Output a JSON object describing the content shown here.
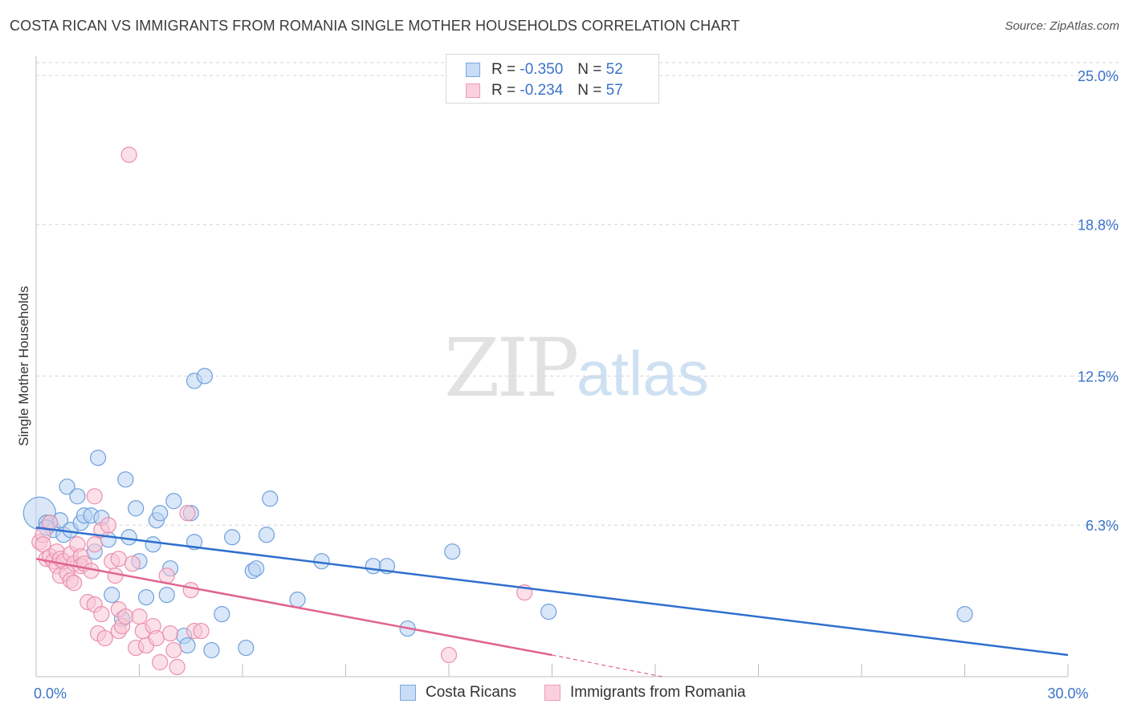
{
  "title": "COSTA RICAN VS IMMIGRANTS FROM ROMANIA SINGLE MOTHER HOUSEHOLDS CORRELATION CHART",
  "source": "Source: ZipAtlas.com",
  "watermark": {
    "zip": "ZIP",
    "atlas": "atlas"
  },
  "colors": {
    "blue_fill": "#b9d3f2",
    "blue_stroke": "#6fa0dc",
    "blue_line": "#2f6fce",
    "pink_fill": "#f8c6d6",
    "pink_stroke": "#eb8fae",
    "pink_line": "#e0648f",
    "tick_text": "#3a73c8",
    "grid": "#d6d6d6"
  },
  "legend_top": {
    "rows": [
      {
        "series": "blue",
        "r_label": "R =",
        "r_value": "-0.350",
        "n_label": "N =",
        "n_value": "52"
      },
      {
        "series": "pink",
        "r_label": "R =",
        "r_value": "-0.234",
        "n_label": "N =",
        "n_value": "57"
      }
    ]
  },
  "chart_data": {
    "type": "scatter",
    "title": "COSTA RICAN VS IMMIGRANTS FROM ROMANIA SINGLE MOTHER HOUSEHOLDS CORRELATION CHART",
    "xlabel": "",
    "ylabel": "Single Mother Households",
    "xlim": [
      0,
      30
    ],
    "ylim": [
      0,
      25.8
    ],
    "x_tick_labels": [
      {
        "value": 0,
        "label": "0.0%"
      },
      {
        "value": 30,
        "label": "30.0%"
      }
    ],
    "x_minor_ticks": [
      3,
      6,
      9,
      12,
      15,
      18,
      21,
      24,
      27
    ],
    "y_ticks": [
      {
        "value": 6.3,
        "label": "6.3%"
      },
      {
        "value": 12.5,
        "label": "12.5%"
      },
      {
        "value": 18.8,
        "label": "18.8%"
      },
      {
        "value": 25.0,
        "label": "25.0%"
      }
    ],
    "series": [
      {
        "name": "Costa Ricans",
        "color": "blue",
        "r": -0.35,
        "n": 52,
        "trend": {
          "x": [
            0,
            30
          ],
          "y": [
            6.2,
            0.9
          ]
        },
        "points": [
          [
            0.1,
            6.8
          ],
          [
            0.3,
            6.4
          ],
          [
            0.4,
            6.4
          ],
          [
            0.5,
            6.1
          ],
          [
            0.7,
            6.5
          ],
          [
            0.8,
            5.9
          ],
          [
            0.9,
            7.9
          ],
          [
            1.0,
            6.1
          ],
          [
            1.2,
            7.5
          ],
          [
            1.3,
            6.4
          ],
          [
            1.4,
            6.7
          ],
          [
            1.6,
            6.7
          ],
          [
            1.7,
            5.2
          ],
          [
            1.8,
            9.1
          ],
          [
            1.9,
            6.6
          ],
          [
            2.1,
            5.7
          ],
          [
            2.2,
            3.4
          ],
          [
            2.5,
            2.4
          ],
          [
            2.6,
            8.2
          ],
          [
            2.7,
            5.8
          ],
          [
            2.9,
            7.0
          ],
          [
            3.0,
            4.8
          ],
          [
            3.2,
            3.3
          ],
          [
            3.4,
            5.5
          ],
          [
            3.5,
            6.5
          ],
          [
            3.6,
            6.8
          ],
          [
            3.8,
            3.4
          ],
          [
            3.9,
            4.5
          ],
          [
            4.0,
            7.3
          ],
          [
            4.3,
            1.7
          ],
          [
            4.4,
            1.3
          ],
          [
            4.5,
            6.8
          ],
          [
            4.6,
            12.3
          ],
          [
            4.6,
            5.6
          ],
          [
            4.9,
            12.5
          ],
          [
            5.1,
            1.1
          ],
          [
            5.4,
            2.6
          ],
          [
            5.7,
            5.8
          ],
          [
            6.1,
            1.2
          ],
          [
            6.3,
            4.4
          ],
          [
            6.4,
            4.5
          ],
          [
            6.7,
            5.9
          ],
          [
            6.8,
            7.4
          ],
          [
            7.6,
            3.2
          ],
          [
            8.3,
            4.8
          ],
          [
            9.8,
            4.6
          ],
          [
            10.2,
            4.6
          ],
          [
            10.8,
            2.0
          ],
          [
            12.1,
            5.2
          ],
          [
            14.9,
            2.7
          ],
          [
            27.0,
            2.6
          ],
          [
            0.3,
            6.2
          ]
        ]
      },
      {
        "name": "Immigrants from Romania",
        "color": "pink",
        "r": -0.234,
        "n": 57,
        "trend": {
          "x": [
            0,
            15
          ],
          "y": [
            4.9,
            0.9
          ]
        },
        "trend_dashed_ext": {
          "x": [
            15,
            18.2
          ],
          "y": [
            0.9,
            0.0
          ]
        },
        "points": [
          [
            0.1,
            5.6
          ],
          [
            0.2,
            5.9
          ],
          [
            0.2,
            5.5
          ],
          [
            0.3,
            4.9
          ],
          [
            0.4,
            5.0
          ],
          [
            0.5,
            4.8
          ],
          [
            0.6,
            5.2
          ],
          [
            0.6,
            4.6
          ],
          [
            0.7,
            4.9
          ],
          [
            0.7,
            4.2
          ],
          [
            0.8,
            4.8
          ],
          [
            0.9,
            4.3
          ],
          [
            1.0,
            5.1
          ],
          [
            1.0,
            4.0
          ],
          [
            1.1,
            4.7
          ],
          [
            1.1,
            3.9
          ],
          [
            1.2,
            5.5
          ],
          [
            1.3,
            5.0
          ],
          [
            1.3,
            4.6
          ],
          [
            1.4,
            4.7
          ],
          [
            1.5,
            3.1
          ],
          [
            1.6,
            4.4
          ],
          [
            1.7,
            7.5
          ],
          [
            1.7,
            5.5
          ],
          [
            1.7,
            3.0
          ],
          [
            1.8,
            1.8
          ],
          [
            1.9,
            2.6
          ],
          [
            1.9,
            6.1
          ],
          [
            2.0,
            1.6
          ],
          [
            2.1,
            6.3
          ],
          [
            2.2,
            4.8
          ],
          [
            2.3,
            4.2
          ],
          [
            2.4,
            2.8
          ],
          [
            2.4,
            1.9
          ],
          [
            2.5,
            2.1
          ],
          [
            2.6,
            2.5
          ],
          [
            2.7,
            21.7
          ],
          [
            2.8,
            4.7
          ],
          [
            2.9,
            1.2
          ],
          [
            3.0,
            2.5
          ],
          [
            3.1,
            1.9
          ],
          [
            3.2,
            1.3
          ],
          [
            3.4,
            2.1
          ],
          [
            3.5,
            1.6
          ],
          [
            3.6,
            0.6
          ],
          [
            3.8,
            4.2
          ],
          [
            3.9,
            1.8
          ],
          [
            4.0,
            1.1
          ],
          [
            4.1,
            0.4
          ],
          [
            4.4,
            6.8
          ],
          [
            4.5,
            3.6
          ],
          [
            4.6,
            1.9
          ],
          [
            4.8,
            1.9
          ],
          [
            0.4,
            6.4
          ],
          [
            2.4,
            4.9
          ],
          [
            14.2,
            3.5
          ],
          [
            12.0,
            0.9
          ]
        ]
      }
    ]
  },
  "legend_bottom": [
    {
      "series": "blue",
      "label": "Costa Ricans"
    },
    {
      "series": "pink",
      "label": "Immigrants from Romania"
    }
  ]
}
